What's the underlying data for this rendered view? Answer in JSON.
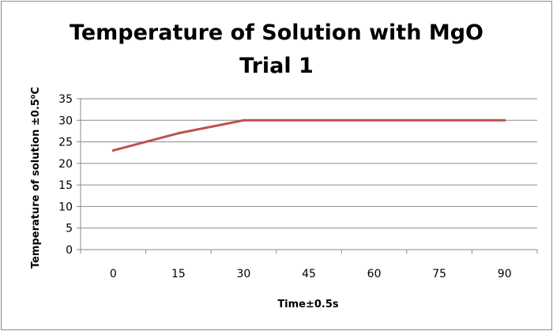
{
  "chart_data": {
    "type": "line",
    "title_lines": [
      "Temperature of Solution with MgO",
      "Trial 1"
    ],
    "xlabel": "Time±0.5s",
    "ylabel": "Temperature of solution ±0.5⁰C",
    "categories": [
      "0",
      "15",
      "30",
      "45",
      "60",
      "75",
      "90"
    ],
    "x": [
      0,
      15,
      30,
      45,
      60,
      75,
      90
    ],
    "yticks": [
      0,
      5,
      10,
      15,
      20,
      25,
      30,
      35
    ],
    "ylim": [
      0,
      35
    ],
    "grid": true,
    "legend": "none",
    "series": [
      {
        "values": [
          23,
          27,
          30,
          30,
          30,
          30,
          30
        ],
        "color": "#c0504d"
      }
    ]
  }
}
